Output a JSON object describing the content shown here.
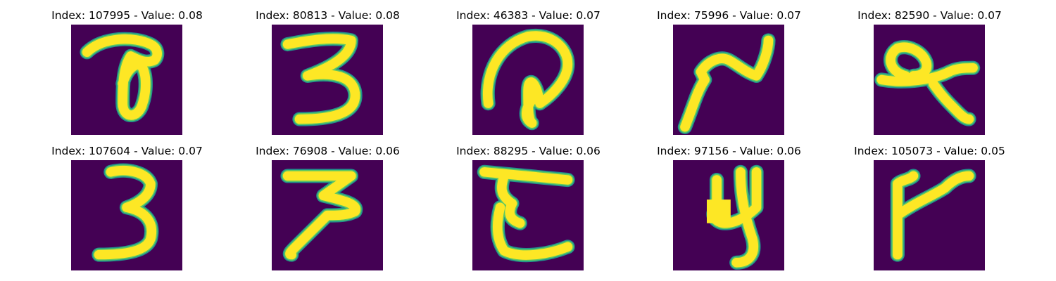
{
  "colors": {
    "background": "#440154",
    "stroke_edge": "#21918c",
    "stroke_mid": "#5ec962",
    "stroke_core": "#fde725"
  },
  "panels": [
    {
      "title": "Index: 107995 - Value: 0.08"
    },
    {
      "title": "Index: 80813 - Value: 0.08"
    },
    {
      "title": "Index: 46383 - Value: 0.07"
    },
    {
      "title": "Index: 75996 - Value: 0.07"
    },
    {
      "title": "Index: 82590 - Value: 0.07"
    },
    {
      "title": "Index: 107604 - Value: 0.07"
    },
    {
      "title": "Index: 76908 - Value: 0.06"
    },
    {
      "title": "Index: 88295 - Value: 0.06"
    },
    {
      "title": "Index: 97156 - Value: 0.06"
    },
    {
      "title": "Index: 105073 - Value: 0.05"
    }
  ]
}
